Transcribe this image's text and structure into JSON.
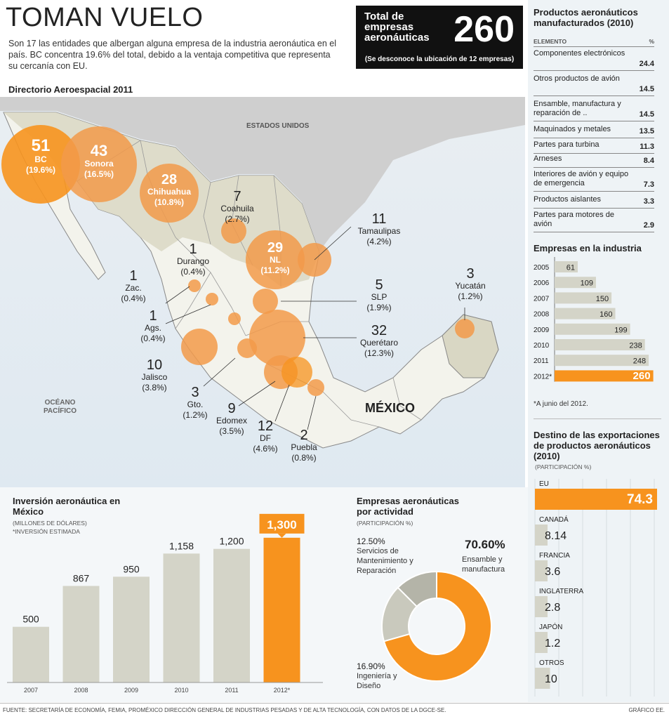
{
  "header": {
    "title": "TOMAN VUELO",
    "intro": "Son 17 las entidades que albergan alguna empresa de la industria aeronáutica en el país. BC concentra 19.6% del total, debido a la ventaja competitiva que representa su cercanía con EU.",
    "map_title": "Directorio Aeroespacial 2011"
  },
  "total": {
    "label_line1": "Total de",
    "label_line2": "empresas",
    "label_line3": "aeronáuticas",
    "value": "260",
    "note": "(Se desconoce la ubicación de 12 empresas)"
  },
  "map": {
    "us_label": "ESTADOS UNIDOS",
    "ocean_label_1": "OCÉANO",
    "ocean_label_2": "PACÍFICO",
    "country_label": "MÉXICO",
    "states": [
      {
        "count": "51",
        "name": "BC",
        "pct": "(19.6%)"
      },
      {
        "count": "43",
        "name": "Sonora",
        "pct": "(16.5%)"
      },
      {
        "count": "28",
        "name": "Chihuahua",
        "pct": "(10.8%)"
      },
      {
        "count": "7",
        "name": "Coahuila",
        "pct": "(2.7%)"
      },
      {
        "count": "29",
        "name": "NL",
        "pct": "(11.2%)"
      },
      {
        "count": "11",
        "name": "Tamaulipas",
        "pct": "(4.2%)"
      },
      {
        "count": "1",
        "name": "Durango",
        "pct": "(0.4%)"
      },
      {
        "count": "1",
        "name": "Zac.",
        "pct": "(0.4%)"
      },
      {
        "count": "1",
        "name": "Ags.",
        "pct": "(0.4%)"
      },
      {
        "count": "5",
        "name": "SLP",
        "pct": "(1.9%)"
      },
      {
        "count": "3",
        "name": "Yucatán",
        "pct": "(1.2%)"
      },
      {
        "count": "32",
        "name": "Querétaro",
        "pct": "(12.3%)"
      },
      {
        "count": "10",
        "name": "Jalisco",
        "pct": "(3.8%)"
      },
      {
        "count": "3",
        "name": "Gto.",
        "pct": "(1.2%)"
      },
      {
        "count": "9",
        "name": "Edomex",
        "pct": "(3.5%)"
      },
      {
        "count": "12",
        "name": "DF",
        "pct": "(4.6%)"
      },
      {
        "count": "2",
        "name": "Puebla",
        "pct": "(0.8%)"
      }
    ]
  },
  "chart_data": [
    {
      "type": "bar",
      "title": "Inversión aeronáutica en México",
      "subtitle": "(MILLONES DE DÓLARES)",
      "note": "*INVERSIÓN ESTIMADA",
      "categories": [
        "2007",
        "2008",
        "2009",
        "2010",
        "2011",
        "2012*"
      ],
      "values": [
        500,
        867,
        950,
        1158,
        1200,
        1300
      ],
      "labels": [
        "500",
        "867",
        "950",
        "1,158",
        "1,200",
        "1,300"
      ],
      "highlight_index": 5,
      "ylim": [
        0,
        1400
      ]
    },
    {
      "type": "pie",
      "title": "Empresas aeronáuticas por actividad",
      "subtitle": "(PARTICIPACIÓN %)",
      "slices": [
        {
          "label": "Ensamble y manufactura",
          "value": 70.6,
          "pct_text": "70.60%",
          "color": "#f7931e"
        },
        {
          "label": "Ingeniería y Diseño",
          "value": 16.9,
          "pct_text": "16.90%",
          "color": "#c9c9bd"
        },
        {
          "label": "Servicios de Mantenimiento y Reparación",
          "value": 12.5,
          "pct_text": "12.50%",
          "color": "#b4b4a8"
        }
      ]
    },
    {
      "type": "bar",
      "orientation": "horizontal",
      "title": "Empresas en la industria",
      "categories": [
        "2005",
        "2006",
        "2007",
        "2008",
        "2009",
        "2010",
        "2011",
        "2012*"
      ],
      "values": [
        61,
        109,
        150,
        160,
        199,
        238,
        248,
        260
      ],
      "highlight_index": 7,
      "note": "*A junio del 2012.",
      "xlim": [
        0,
        270
      ]
    },
    {
      "type": "bar",
      "orientation": "horizontal",
      "title": "Destino de las exportaciones de productos aeronáuticos (2010)",
      "subtitle": "(PARTICIPACIÓN %)",
      "categories": [
        "EU",
        "CANADÁ",
        "FRANCIA",
        "INGLATERRA",
        "JAPÓN",
        "OTROS"
      ],
      "values": [
        74.3,
        8.14,
        3.6,
        2.8,
        1.2,
        10
      ],
      "labels": [
        "74.3",
        "8.14",
        "3.6",
        "2.8",
        "1.2",
        "10"
      ],
      "highlight_index": 0,
      "xlim": [
        0,
        80
      ]
    },
    {
      "type": "table",
      "title": "Productos aeronáuticos manufacturados (2010)",
      "columns": [
        "ELEMENTO",
        "%"
      ],
      "rows": [
        {
          "name": "Componentes electrónicos",
          "value": "24.4"
        },
        {
          "name": "Otros productos de avión",
          "value": "14.5"
        },
        {
          "name": "Ensamble, manufactura y reparación de ..",
          "value": "14.5"
        },
        {
          "name": "Maquinados y metales",
          "value": "13.5"
        },
        {
          "name": "Partes para turbina",
          "value": "11.3"
        },
        {
          "name": "Arneses",
          "value": "8.4"
        },
        {
          "name": "Interiores de avión y equipo de emergencia",
          "value": "7.3"
        },
        {
          "name": "Productos aislantes",
          "value": "3.3"
        },
        {
          "name": "Partes para motores de avión",
          "value": "2.9"
        }
      ]
    }
  ],
  "footer": {
    "source": "FUENTE: SECRETARÍA DE ECONOMÍA, FEMIA, PROMÉXICO DIRECCIÓN GENERAL DE INDUSTRIAS PESADAS Y DE ALTA TECNOLOGÍA, CON DATOS DE LA DGCE-SE.",
    "credit": "GRÁFICO EE."
  },
  "colors": {
    "accent": "#f7931e",
    "bubble": "#f29a4a",
    "bar_gray": "#d4d4c8",
    "dark": "#111111"
  }
}
